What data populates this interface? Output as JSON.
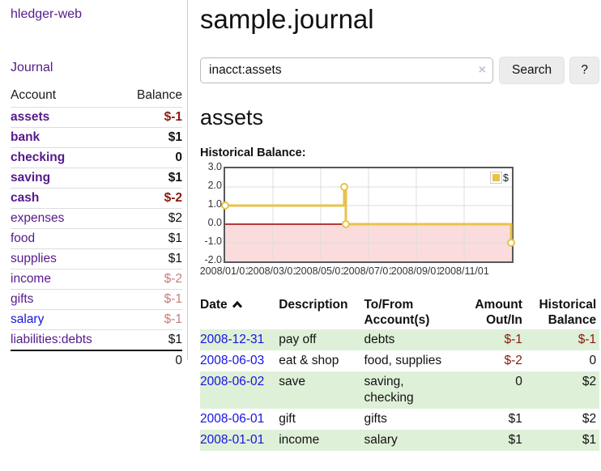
{
  "app": {
    "title": "hledger-web"
  },
  "colors": {
    "link_purple": "#551a8b",
    "link_blue": "#1414e0",
    "negative_strong": "#8b1a10",
    "negative_muted": "#c47e7e",
    "row_stripe_green": "#dff0d8",
    "chart_line_gold": "#e8c24a",
    "negative_region_pink": "#fbdcdc",
    "zero_line_red": "#9a0000"
  },
  "icons": {
    "clear_search": "×",
    "help": "?",
    "sort": "chevron-up-icon",
    "legend_swatch": "gold-square"
  },
  "sidebar": {
    "journal_link": "Journal",
    "table": {
      "headers": {
        "account": "Account",
        "balance": "Balance"
      },
      "rows": [
        {
          "name": "assets",
          "indent": 1,
          "matched": true,
          "unvisited": false,
          "balance": "$-1",
          "balance_style": "neg-strong"
        },
        {
          "name": "bank",
          "indent": 2,
          "matched": true,
          "unvisited": false,
          "balance": "$1",
          "balance_style": "pos-strong"
        },
        {
          "name": "checking",
          "indent": 3,
          "matched": true,
          "unvisited": false,
          "balance": "0",
          "balance_style": "pos-strong"
        },
        {
          "name": "saving",
          "indent": 3,
          "matched": true,
          "unvisited": false,
          "balance": "$1",
          "balance_style": "pos-strong"
        },
        {
          "name": "cash",
          "indent": 2,
          "matched": true,
          "unvisited": false,
          "balance": "$-2",
          "balance_style": "neg-strong"
        },
        {
          "name": "expenses",
          "indent": 1,
          "matched": false,
          "unvisited": false,
          "balance": "$2",
          "balance_style": "pos"
        },
        {
          "name": "food",
          "indent": 2,
          "matched": false,
          "unvisited": false,
          "balance": "$1",
          "balance_style": "pos"
        },
        {
          "name": "supplies",
          "indent": 2,
          "matched": false,
          "unvisited": false,
          "balance": "$1",
          "balance_style": "pos"
        },
        {
          "name": "income",
          "indent": 1,
          "matched": false,
          "unvisited": false,
          "balance": "$-2",
          "balance_style": "neg-muted"
        },
        {
          "name": "gifts",
          "indent": 2,
          "matched": false,
          "unvisited": false,
          "balance": "$-1",
          "balance_style": "neg-muted"
        },
        {
          "name": "salary",
          "indent": 2,
          "matched": false,
          "unvisited": true,
          "balance": "$-1",
          "balance_style": "neg-muted"
        },
        {
          "name": "liabilities:debts",
          "indent": 1,
          "matched": false,
          "unvisited": false,
          "balance": "$1",
          "balance_style": "pos"
        }
      ],
      "total": "0"
    }
  },
  "main": {
    "title": "sample.journal",
    "search": {
      "value": "inacct:assets",
      "clear_icon": "×",
      "button_label": "Search",
      "help_label": "?"
    },
    "account_heading": "assets",
    "chart_label": "Historical Balance:",
    "register": {
      "headers": {
        "date": "Date",
        "description": "Description",
        "accounts": "To/From Account(s)",
        "amount": "Amount Out/In",
        "balance": "Historical Balance"
      },
      "rows": [
        {
          "date": "2008-12-31",
          "description": "pay off",
          "accounts": "debts",
          "amount": "$-1",
          "amount_negative": true,
          "balance": "$-1",
          "balance_negative": true
        },
        {
          "date": "2008-06-03",
          "description": "eat & shop",
          "accounts": "food, supplies",
          "amount": "$-2",
          "amount_negative": true,
          "balance": "0",
          "balance_negative": false
        },
        {
          "date": "2008-06-02",
          "description": "save",
          "accounts": "saving, checking",
          "amount": "0",
          "amount_negative": false,
          "balance": "$2",
          "balance_negative": false
        },
        {
          "date": "2008-06-01",
          "description": "gift",
          "accounts": "gifts",
          "amount": "$1",
          "amount_negative": false,
          "balance": "$2",
          "balance_negative": false
        },
        {
          "date": "2008-01-01",
          "description": "income",
          "accounts": "salary",
          "amount": "$1",
          "amount_negative": false,
          "balance": "$1",
          "balance_negative": false
        }
      ]
    }
  },
  "chart_data": {
    "type": "line",
    "step": true,
    "title": "Historical Balance:",
    "series": [
      {
        "name": "$",
        "color": "#e8c24a",
        "points": [
          [
            "2008-01-01",
            1
          ],
          [
            "2008-06-01",
            2
          ],
          [
            "2008-06-03",
            0
          ],
          [
            "2008-12-31",
            -1
          ]
        ]
      }
    ],
    "x_range": [
      "2008-01-01",
      "2009-01-01"
    ],
    "ylim": [
      -2,
      3
    ],
    "yticks": [
      3,
      2,
      1,
      0,
      -1,
      -2
    ],
    "xtick_labels": [
      "2008/01/01",
      "2008/03/01",
      "2008/05/01",
      "2008/07/01",
      "2008/09/01",
      "2008/11/01"
    ],
    "xtick_month_index": [
      0,
      2,
      4,
      6,
      8,
      10
    ],
    "legend_position": "top-right",
    "grid": true,
    "negative_region_color": "#fbdcdc",
    "zero_line_color": "#9a0000"
  }
}
